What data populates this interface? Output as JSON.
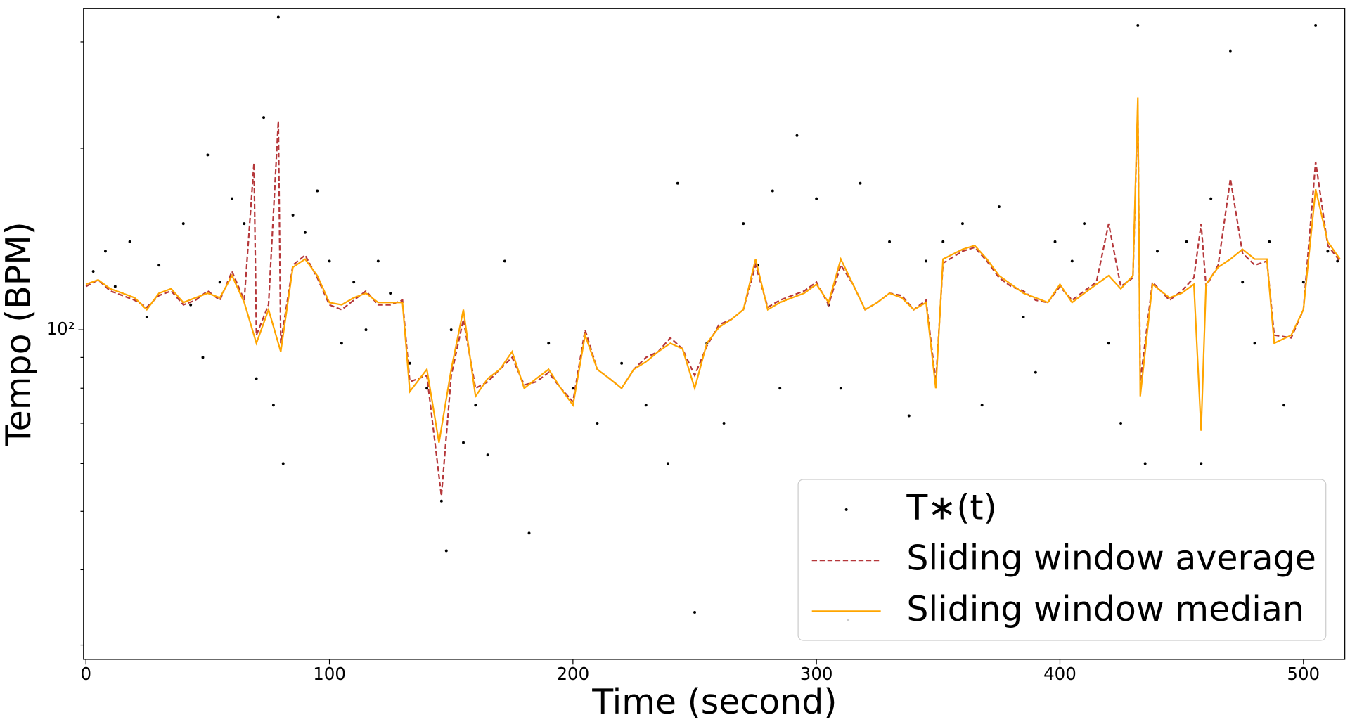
{
  "chart_data": {
    "type": "line",
    "xlabel": "Time (second)",
    "ylabel": "Tempo (BPM)",
    "yscale": "log",
    "xlim": [
      -1,
      517
    ],
    "ylim": [
      28.4,
      341
    ],
    "xticks": [
      0,
      100,
      200,
      300,
      400,
      500
    ],
    "yticks": [
      {
        "value": 100,
        "label": "10²"
      }
    ],
    "yminorticks": [
      30,
      40,
      50,
      60,
      70,
      80,
      90,
      200,
      300
    ],
    "legend": "lower right",
    "series": [
      {
        "name": "T∗(t)",
        "type": "scatter",
        "color": "#000000",
        "x": [
          3,
          8,
          12,
          18,
          25,
          30,
          40,
          43,
          48,
          50,
          55,
          60,
          65,
          70,
          73,
          77,
          79,
          81,
          85,
          90,
          95,
          100,
          105,
          110,
          115,
          120,
          125,
          133,
          140,
          146,
          148,
          150,
          155,
          160,
          165,
          172,
          182,
          190,
          200,
          210,
          220,
          230,
          239,
          243,
          250,
          255,
          262,
          270,
          276,
          282,
          285,
          292,
          300,
          305,
          310,
          313,
          318,
          330,
          338,
          345,
          352,
          360,
          368,
          375,
          385,
          390,
          398,
          405,
          410,
          420,
          425,
          432,
          435,
          440,
          452,
          458,
          462,
          470,
          475,
          480,
          486,
          492,
          500,
          505,
          510,
          514
        ],
        "values": [
          125,
          135,
          118,
          140,
          105,
          128,
          150,
          110,
          90,
          195,
          120,
          165,
          150,
          83,
          225,
          75,
          330,
          60,
          155,
          145,
          170,
          130,
          95,
          120,
          100,
          130,
          115,
          88,
          80,
          52,
          43,
          100,
          65,
          75,
          62,
          130,
          46,
          95,
          80,
          70,
          88,
          75,
          60,
          175,
          34,
          95,
          70,
          150,
          128,
          170,
          80,
          210,
          165,
          110,
          80,
          33,
          175,
          140,
          72,
          130,
          140,
          150,
          75,
          160,
          105,
          85,
          140,
          130,
          150,
          95,
          70,
          320,
          60,
          135,
          140,
          60,
          165,
          290,
          120,
          95,
          140,
          75,
          120,
          320,
          135,
          130
        ]
      },
      {
        "name": "Sliding window average",
        "type": "line",
        "color": "#b5373a",
        "dash": true,
        "x": [
          0,
          5,
          10,
          15,
          20,
          25,
          30,
          35,
          40,
          45,
          50,
          55,
          60,
          65,
          69,
          70,
          75,
          79,
          80,
          85,
          90,
          95,
          100,
          105,
          110,
          115,
          120,
          125,
          130,
          133,
          140,
          146,
          150,
          155,
          160,
          165,
          170,
          175,
          180,
          185,
          190,
          195,
          200,
          205,
          210,
          215,
          220,
          225,
          230,
          235,
          240,
          245,
          250,
          255,
          260,
          265,
          270,
          275,
          280,
          285,
          290,
          295,
          300,
          305,
          310,
          315,
          320,
          325,
          330,
          335,
          340,
          345,
          349,
          352,
          360,
          365,
          370,
          375,
          380,
          385,
          390,
          395,
          400,
          405,
          410,
          415,
          420,
          425,
          430,
          432,
          433,
          438,
          445,
          450,
          455,
          458,
          460,
          465,
          470,
          475,
          480,
          485,
          488,
          495,
          500,
          505,
          510,
          515
        ],
        "values": [
          118,
          121,
          116,
          114,
          112,
          109,
          114,
          116,
          110,
          112,
          116,
          112,
          125,
          112,
          189,
          98,
          110,
          222,
          95,
          128,
          133,
          122,
          110,
          108,
          112,
          116,
          110,
          110,
          112,
          82,
          84,
          53,
          84,
          104,
          80,
          82,
          86,
          90,
          81,
          82,
          85,
          80,
          76,
          100,
          86,
          83,
          80,
          86,
          90,
          92,
          97,
          93,
          84,
          94,
          102,
          104,
          108,
          128,
          109,
          112,
          114,
          116,
          120,
          110,
          128,
          119,
          108,
          111,
          115,
          114,
          108,
          112,
          82,
          129,
          135,
          137,
          130,
          122,
          118,
          116,
          112,
          111,
          118,
          112,
          116,
          120,
          150,
          118,
          122,
          236,
          82,
          120,
          112,
          116,
          122,
          150,
          118,
          128,
          178,
          134,
          128,
          130,
          98,
          97,
          108,
          190,
          138,
          130
        ]
      },
      {
        "name": "Sliding window median",
        "type": "line",
        "color": "#ffa500",
        "dash": false,
        "x": [
          0,
          5,
          10,
          15,
          20,
          25,
          30,
          35,
          40,
          45,
          50,
          55,
          60,
          65,
          70,
          75,
          80,
          85,
          90,
          95,
          100,
          105,
          110,
          115,
          120,
          125,
          130,
          133,
          140,
          145,
          150,
          155,
          160,
          165,
          170,
          175,
          180,
          185,
          190,
          195,
          200,
          205,
          210,
          215,
          220,
          225,
          230,
          235,
          240,
          245,
          250,
          255,
          260,
          265,
          270,
          275,
          280,
          285,
          290,
          295,
          300,
          305,
          310,
          315,
          320,
          325,
          330,
          335,
          340,
          345,
          349,
          352,
          360,
          365,
          370,
          375,
          380,
          385,
          390,
          395,
          400,
          405,
          410,
          415,
          420,
          425,
          430,
          432,
          433,
          438,
          445,
          450,
          455,
          458,
          460,
          465,
          470,
          475,
          480,
          485,
          488,
          495,
          500,
          505,
          510,
          515
        ],
        "values": [
          119,
          121,
          117,
          115,
          113,
          108,
          115,
          117,
          111,
          113,
          115,
          113,
          123,
          111,
          95,
          108,
          92,
          127,
          131,
          123,
          111,
          110,
          113,
          115,
          111,
          111,
          111,
          79,
          86,
          65,
          86,
          108,
          77.6,
          83,
          86,
          92,
          80,
          83,
          86,
          80,
          75,
          98,
          86,
          83,
          80,
          86,
          88.5,
          92,
          95,
          93,
          80,
          95,
          101,
          104,
          108,
          131,
          108,
          111,
          113,
          115,
          119,
          111,
          131,
          119,
          108,
          111,
          115,
          113,
          108,
          111,
          80,
          131,
          136,
          138,
          131,
          123,
          119,
          115,
          113,
          111,
          119,
          111,
          115,
          119,
          123,
          117,
          123,
          243,
          77.6,
          119,
          113,
          115,
          119,
          68,
          119,
          127,
          131,
          136,
          131,
          131,
          95,
          98,
          108,
          171,
          140,
          131
        ]
      }
    ]
  }
}
